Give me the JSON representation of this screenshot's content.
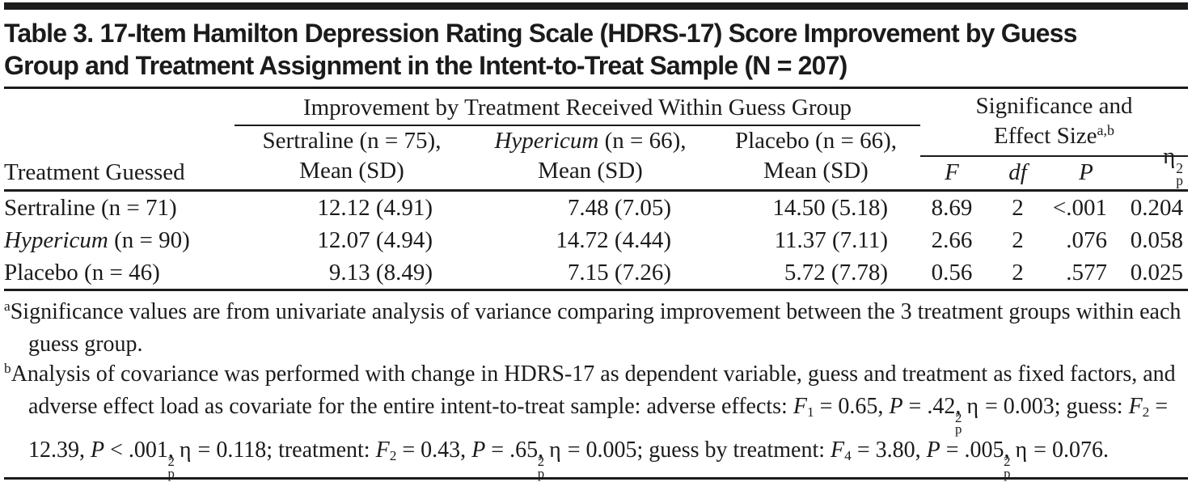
{
  "title": "Table 3. 17-Item Hamilton Depression Rating Scale (HDRS-17) Score Improvement by Guess Group and Treatment Assignment in the Intent-to-Treat Sample (N = 207)",
  "table": {
    "row_header_label": "Treatment Guessed",
    "spanner_improvement": "Improvement by Treatment Received Within Guess Group",
    "spanner_significance_line1": "Significance and",
    "spanner_significance_line2": [
      {
        "t": "Effect Size"
      },
      {
        "t": "a,b",
        "s": "sup"
      }
    ],
    "group_columns": [
      {
        "line1": [
          {
            "t": "Sertraline (n = 75),"
          }
        ],
        "line2": "Mean (SD)"
      },
      {
        "line1": [
          {
            "t": "Hypericum",
            "s": "i"
          },
          {
            "t": " (n = 66),"
          }
        ],
        "line2": "Mean (SD)"
      },
      {
        "line1": [
          {
            "t": "Placebo (n = 66),"
          }
        ],
        "line2": "Mean (SD)"
      }
    ],
    "stat_columns": [
      [
        {
          "t": "F",
          "s": "i"
        }
      ],
      [
        {
          "t": "df",
          "s": "i"
        }
      ],
      [
        {
          "t": "P",
          "s": "i"
        }
      ],
      [
        {
          "t": "η"
        },
        {
          "s": "supsub",
          "sup": "2",
          "sub": "p"
        }
      ]
    ],
    "rows": [
      {
        "label": [
          {
            "t": "Sertraline (n = 71)"
          }
        ],
        "sertraline_mean_sd": "12.12 (4.91)",
        "hypericum_mean_sd": "7.48 (7.05)",
        "placebo_mean_sd": "14.50 (5.18)",
        "f": "8.69",
        "df": "2",
        "p": "<.001",
        "partial_eta_squared": "0.204"
      },
      {
        "label": [
          {
            "t": "Hypericum",
            "s": "i"
          },
          {
            "t": " (n = 90)"
          }
        ],
        "sertraline_mean_sd": "12.07 (4.94)",
        "hypericum_mean_sd": "14.72 (4.44)",
        "placebo_mean_sd": "11.37 (7.11)",
        "f": "2.66",
        "df": "2",
        "p": ".076",
        "partial_eta_squared": "0.058"
      },
      {
        "label": [
          {
            "t": "Placebo (n = 46)"
          }
        ],
        "sertraline_mean_sd": "9.13 (8.49)",
        "hypericum_mean_sd": "7.15 (7.26)",
        "placebo_mean_sd": "5.72 (7.78)",
        "f": "0.56",
        "df": "2",
        "p": ".577",
        "partial_eta_squared": "0.025"
      }
    ]
  },
  "footnotes": {
    "a": [
      {
        "t": "a",
        "s": "sup"
      },
      {
        "t": "Significance values are from univariate analysis of variance comparing improvement between the 3 treatment groups within each guess group."
      }
    ],
    "b": [
      {
        "t": "b",
        "s": "sup"
      },
      {
        "t": "Analysis of covariance was performed with change in HDRS-17 as dependent variable, guess and treatment as fixed factors, and adverse effect load as covariate for the entire intent-to-treat sample: adverse effects: "
      },
      {
        "t": "F",
        "s": "i"
      },
      {
        "t": "1",
        "s": "sub"
      },
      {
        "t": " = 0.65, "
      },
      {
        "t": "P",
        "s": "i"
      },
      {
        "t": " = .42, η"
      },
      {
        "s": "supsub",
        "sup": "2",
        "sub": "p"
      },
      {
        "t": " = 0.003; guess: "
      },
      {
        "t": "F",
        "s": "i"
      },
      {
        "t": "2",
        "s": "sub"
      },
      {
        "t": " = 12.39, "
      },
      {
        "t": "P",
        "s": "i"
      },
      {
        "t": " < .001, η"
      },
      {
        "s": "supsub",
        "sup": "2",
        "sub": "p"
      },
      {
        "t": " = 0.118; treatment: "
      },
      {
        "t": "F",
        "s": "i"
      },
      {
        "t": "2",
        "s": "sub"
      },
      {
        "t": " = 0.43, "
      },
      {
        "t": "P",
        "s": "i"
      },
      {
        "t": " = .65, η"
      },
      {
        "s": "supsub",
        "sup": "2",
        "sub": "p"
      },
      {
        "t": " = 0.005; guess by treatment: "
      },
      {
        "t": "F",
        "s": "i"
      },
      {
        "t": "4",
        "s": "sub"
      },
      {
        "t": " = 3.80, "
      },
      {
        "t": "P",
        "s": "i"
      },
      {
        "t": " = .005, η"
      },
      {
        "s": "supsub",
        "sup": "2",
        "sub": "p"
      },
      {
        "t": " = 0.076."
      }
    ]
  },
  "colors": {
    "text": "#1b1b1b",
    "rule": "#1b1b1b",
    "background": "#ffffff"
  }
}
